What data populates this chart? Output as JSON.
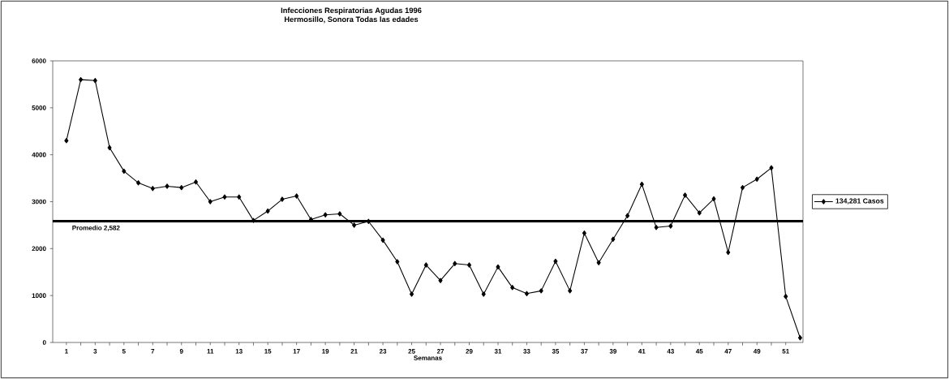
{
  "chart_data": {
    "type": "line",
    "title": "Infecciones Respiratorias Agudas 1996",
    "subtitle": "Hermosillo, Sonora Todas las edades",
    "xlabel": "Semanas",
    "categories": [
      "1",
      null,
      "3",
      null,
      "5",
      null,
      "7",
      null,
      "9",
      null,
      "11",
      null,
      "13",
      null,
      "15",
      null,
      "17",
      null,
      "19",
      null,
      "21",
      null,
      "23",
      null,
      "25",
      null,
      "27",
      null,
      "29",
      null,
      "31",
      null,
      "33",
      null,
      "35",
      null,
      "37",
      null,
      "39",
      null,
      "41",
      null,
      "43",
      null,
      "45",
      null,
      "47",
      null,
      "49",
      null,
      "51",
      null
    ],
    "series": [
      {
        "name": "134,281 Casos",
        "color": "#000000",
        "values": [
          4300,
          5600,
          5580,
          4150,
          3650,
          3400,
          3280,
          3330,
          3300,
          3420,
          3000,
          3100,
          3100,
          2600,
          2800,
          3050,
          3120,
          2620,
          2720,
          2740,
          2500,
          2580,
          2180,
          1720,
          1030,
          1650,
          1320,
          1680,
          1650,
          1030,
          1610,
          1170,
          1040,
          1100,
          1730,
          1100,
          2330,
          1700,
          2200,
          2700,
          3370,
          2450,
          2480,
          3140,
          2760,
          3060,
          1920,
          3300,
          3480,
          3720,
          980,
          100
        ]
      }
    ],
    "ylim": [
      0,
      6000
    ],
    "yticks": [
      0,
      1000,
      2000,
      3000,
      4000,
      5000,
      6000
    ],
    "ref_lines": [
      {
        "axis": "y",
        "value": 2582,
        "label": "Promedio 2,582",
        "color": "#000000",
        "line_style": "solid"
      }
    ],
    "legend": "right",
    "marker": "diamond",
    "line_style": "solid",
    "grid": false
  }
}
